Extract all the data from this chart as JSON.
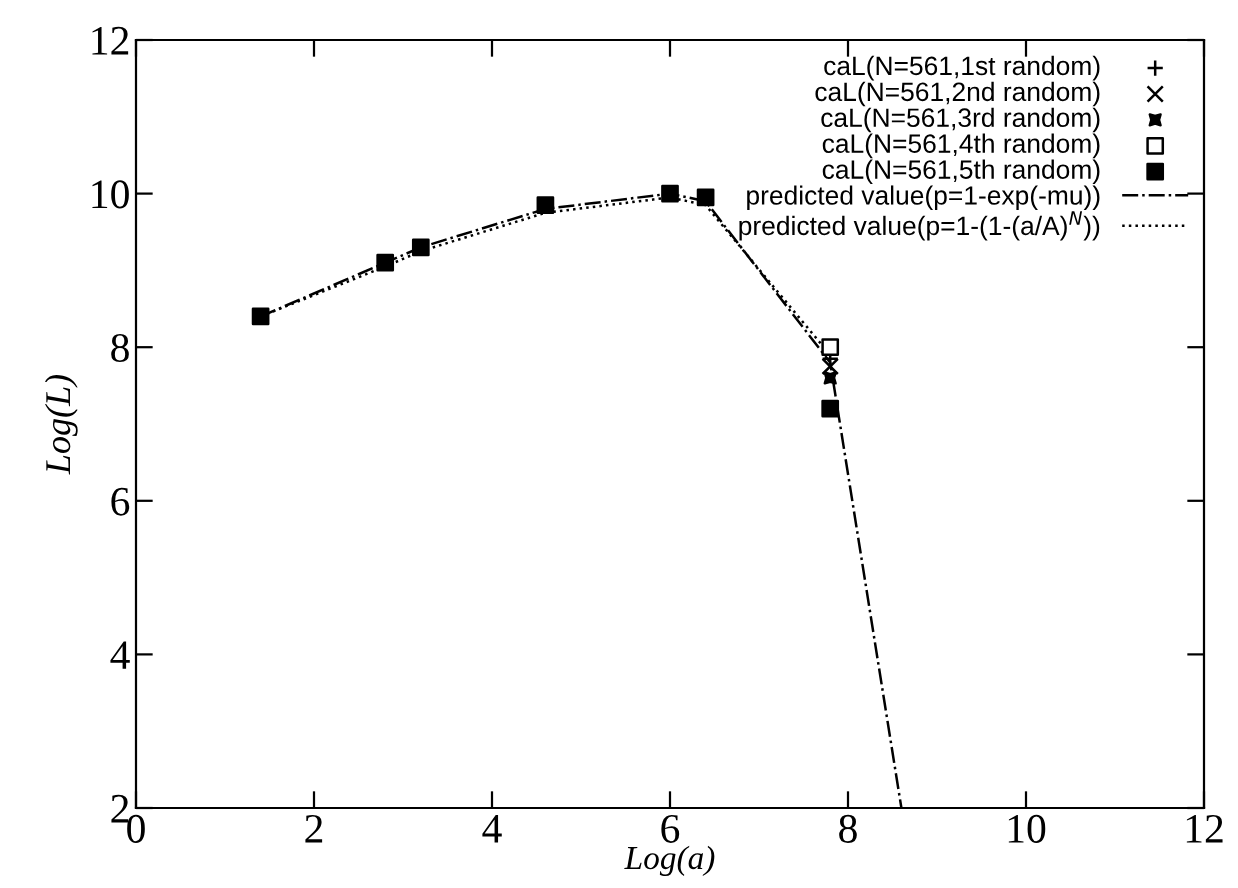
{
  "chart_data": {
    "type": "scatter",
    "xlabel": "Log(a)",
    "ylabel": "Log(L)",
    "xlim": [
      0,
      12
    ],
    "ylim": [
      2,
      12
    ],
    "xticks": [
      0,
      2,
      4,
      6,
      8,
      10,
      12
    ],
    "yticks": [
      2,
      4,
      6,
      8,
      10,
      12
    ],
    "grid": false,
    "legend": "top right",
    "series": [
      {
        "name": "caL(N=561,1st random)",
        "color": "#000000",
        "x": [
          7.8
        ],
        "values": [
          7.85
        ]
      },
      {
        "name": "caL(N=561,2nd random)",
        "marker": "cross",
        "color": "#000000",
        "x": [
          7.8
        ],
        "values": [
          7.75
        ]
      },
      {
        "name": "caL(N=561,3rd random)",
        "marker": "star",
        "color": "#000000",
        "x": [
          7.8
        ],
        "values": [
          7.6
        ]
      },
      {
        "name": "caL(N=561,4th random)",
        "marker": "square",
        "color": "#ffffff",
        "x": [
          7.8
        ],
        "values": [
          8.0
        ]
      },
      {
        "name": "caL(N=561,5th random)",
        "marker": "square",
        "color": "#000000",
        "x": [
          1.4,
          2.8,
          3.2,
          4.6,
          6.0,
          6.4,
          7.8
        ],
        "values": [
          8.4,
          9.1,
          9.3,
          9.85,
          10.0,
          9.95,
          7.2
        ]
      },
      {
        "name": "predicted value(p=1-exp(-mu))",
        "type": "line",
        "line_style": "dashdot",
        "color": "#000000",
        "x": [
          1.4,
          2.8,
          3.2,
          4.6,
          6.0,
          6.4,
          7.8,
          8.6
        ],
        "values": [
          8.4,
          9.1,
          9.3,
          9.8,
          10.0,
          9.9,
          7.8,
          2.0
        ]
      },
      {
        "name": "predicted value(p=1-(1-(a/A)$^{N}$))",
        "type": "line",
        "line_style": "dotted",
        "color": "#000000",
        "x": [
          1.4,
          2.8,
          3.2,
          4.6,
          6.0,
          6.4,
          7.8
        ],
        "values": [
          8.4,
          9.05,
          9.25,
          9.75,
          9.95,
          9.85,
          7.9
        ]
      }
    ]
  }
}
